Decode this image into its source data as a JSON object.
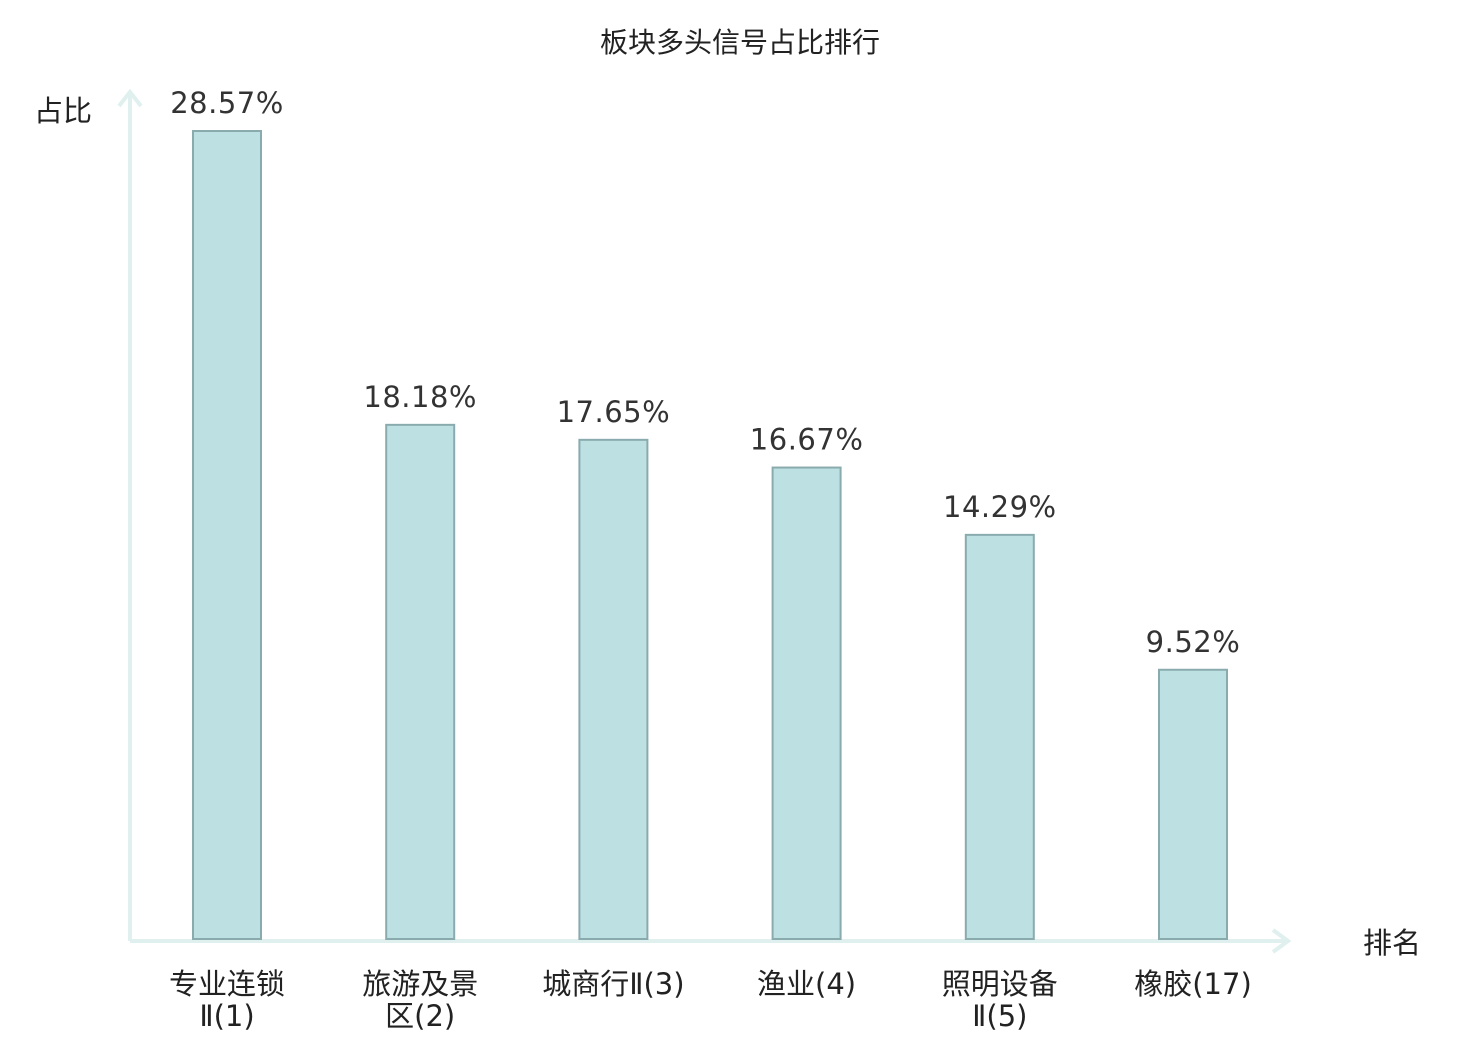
{
  "colors": {
    "bar_fill": "#bde0e3",
    "bar_stroke": "#8aabae",
    "axis": "#dff0ee",
    "highlight": "#d9191d",
    "text": "#222222"
  },
  "chart_data": {
    "type": "bar",
    "title": "板块多头信号占比排行",
    "ylabel": "占比",
    "xlabel": "排名",
    "ylim": [
      0,
      30
    ],
    "grid": false,
    "categories": [
      {
        "lines": [
          "专业连锁",
          "Ⅱ(1)"
        ],
        "highlight": false
      },
      {
        "lines": [
          "旅游及景",
          "区(2)"
        ],
        "highlight": false
      },
      {
        "lines": [
          "城商行Ⅱ(3)"
        ],
        "highlight": false
      },
      {
        "lines": [
          "渔业(4)"
        ],
        "highlight": false
      },
      {
        "lines": [
          "照明设备",
          "Ⅱ(5)"
        ],
        "highlight": false
      },
      {
        "lines": [
          "橡胶(17)"
        ],
        "highlight": true
      }
    ],
    "values": [
      28.57,
      18.18,
      17.65,
      16.67,
      14.29,
      9.52
    ],
    "value_labels": [
      "28.57%",
      "18.18%",
      "17.65%",
      "16.67%",
      "14.29%",
      "9.52%"
    ]
  }
}
